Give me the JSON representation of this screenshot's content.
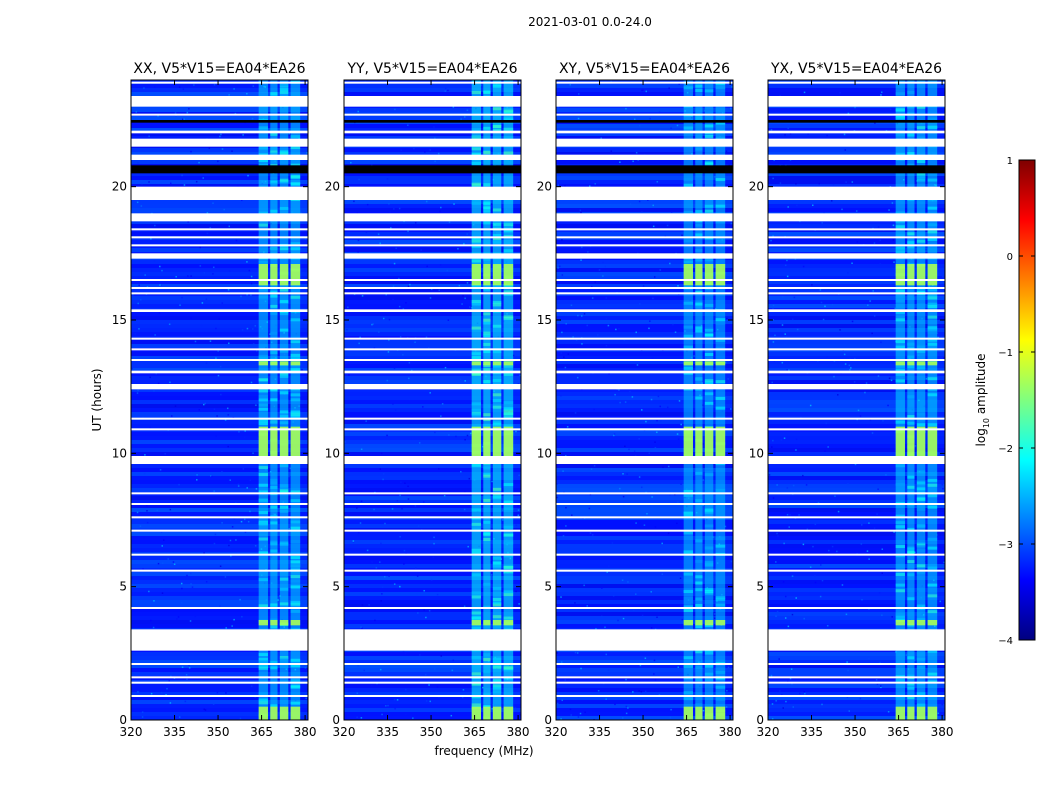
{
  "chart_data": {
    "type": "heatmap",
    "title": "2021-03-01 0.0-24.0",
    "xlabel": "frequency (MHz)",
    "ylabel": "UT (hours)",
    "xlim": [
      320,
      381
    ],
    "ylim": [
      0,
      24
    ],
    "xticks": [
      "320",
      "335",
      "350",
      "365",
      "380"
    ],
    "yticks": [
      "0",
      "5",
      "10",
      "15",
      "20"
    ],
    "panels": [
      {
        "title": "XX, V5*V15=EA04*EA26",
        "polarization": "XX"
      },
      {
        "title": "YY, V5*V15=EA04*EA26",
        "polarization": "YY"
      },
      {
        "title": "XY, V5*V15=EA04*EA26",
        "polarization": "XY"
      },
      {
        "title": "YX, V5*V15=EA04*EA26",
        "polarization": "YX"
      }
    ],
    "colorbar": {
      "label": "log10 amplitude",
      "label_main": "log",
      "label_sub": "10",
      "label_tail": " amplitude",
      "range": [
        -4,
        1
      ],
      "ticks": [
        "−4",
        "−3",
        "−2",
        "−1",
        "0",
        "1"
      ],
      "colormap": "jet"
    },
    "background_log_amplitude": -3.2,
    "blanked_ut_ranges": [
      [
        2.6,
        3.4
      ],
      [
        9.6,
        9.9
      ],
      [
        12.4,
        12.6
      ],
      [
        13.0,
        13.1
      ],
      [
        15.3,
        15.4
      ],
      [
        17.3,
        17.5
      ],
      [
        18.7,
        19.0
      ],
      [
        19.5,
        20.0
      ],
      [
        21.0,
        21.2
      ],
      [
        21.5,
        21.8
      ],
      [
        22.0,
        22.1
      ],
      [
        23.0,
        23.4
      ]
    ],
    "black_ut_ranges": [
      [
        20.5,
        20.8
      ],
      [
        22.4,
        22.5
      ]
    ],
    "thin_gap_ut": [
      0.9,
      1.4,
      1.6,
      2.1,
      4.2,
      5.6,
      6.2,
      7.1,
      7.6,
      8.1,
      8.5,
      10.9,
      11.3,
      13.5,
      13.9,
      14.3,
      16.0,
      16.2,
      16.5,
      17.8,
      18.1,
      18.4,
      22.7,
      23.9
    ],
    "rfi_bands_mhz": [
      [
        364.0,
        367.2
      ],
      [
        368.0,
        370.5
      ],
      [
        371.3,
        374.2
      ],
      [
        375.0,
        378.3
      ]
    ],
    "rfi_level": {
      "XX": -2.3,
      "YY": -2.1,
      "XY": -2.4,
      "YX": -2.3
    },
    "rfi_bright_ut_ranges": [
      [
        0.0,
        0.5
      ],
      [
        3.55,
        3.75
      ],
      [
        9.9,
        11.0
      ],
      [
        13.3,
        13.45
      ],
      [
        16.3,
        17.1
      ]
    ],
    "rfi_bright_level": -1.3
  }
}
